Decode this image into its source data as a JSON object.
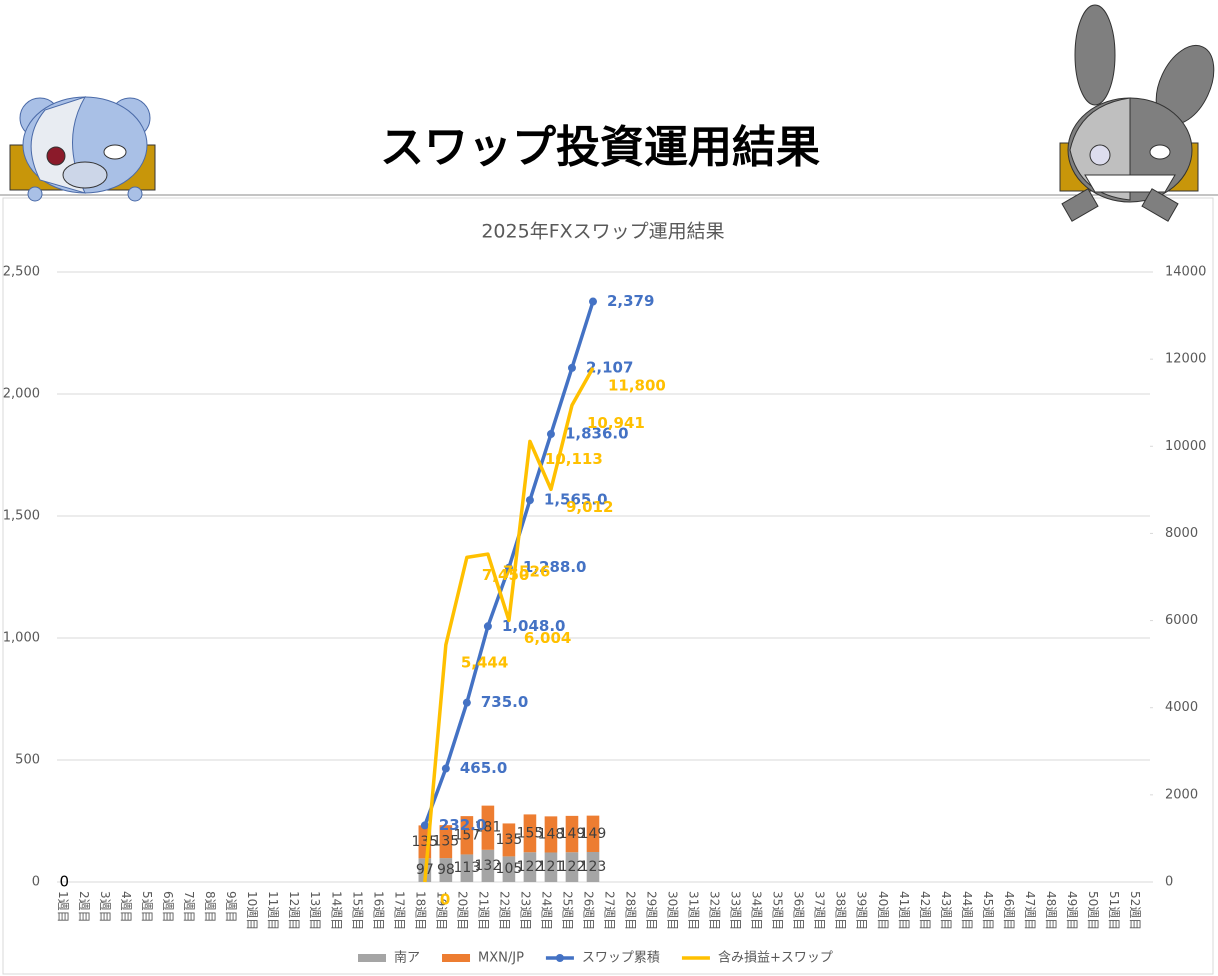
{
  "header": {
    "title": "スワップ投資運用結果"
  },
  "chart_data": {
    "type": "bar",
    "title": "2025年FXスワップ運用結果",
    "categories": [
      "1週目",
      "2週目",
      "3週目",
      "4週目",
      "5週目",
      "6週目",
      "7週目",
      "8週目",
      "9週目",
      "10週目",
      "11週目",
      "12週目",
      "13週目",
      "14週目",
      "15週目",
      "16週目",
      "17週目",
      "18週目",
      "19週目",
      "20週目",
      "21週目",
      "22週目",
      "23週目",
      "24週目",
      "25週目",
      "26週目",
      "27週目",
      "28週目",
      "29週目",
      "30週目",
      "31週目",
      "32週目",
      "33週目",
      "34週目",
      "35週目",
      "36週目",
      "37週目",
      "38週目",
      "39週目",
      "40週目",
      "41週目",
      "42週目",
      "43週目",
      "44週目",
      "45週目",
      "46週目",
      "47週目",
      "48週目",
      "49週目",
      "50週目",
      "51週目",
      "52週目"
    ],
    "series": [
      {
        "name": "南ア",
        "type": "bar",
        "color": "#a5a5a5",
        "values": [
          0,
          null,
          null,
          null,
          null,
          null,
          null,
          null,
          null,
          null,
          null,
          null,
          null,
          null,
          null,
          null,
          null,
          97,
          98,
          113,
          132,
          105,
          122,
          121,
          122,
          123,
          null,
          null,
          null,
          null,
          null,
          null,
          null,
          null,
          null,
          null,
          null,
          null,
          null,
          null,
          null,
          null,
          null,
          null,
          null,
          null,
          null,
          null,
          null,
          null,
          null,
          null
        ]
      },
      {
        "name": "MXN/JP",
        "type": "bar",
        "color": "#ed7d31",
        "values": [
          null,
          null,
          null,
          null,
          null,
          null,
          null,
          null,
          null,
          null,
          null,
          null,
          null,
          null,
          null,
          null,
          null,
          135,
          135,
          157,
          181,
          135,
          155,
          148,
          149,
          149,
          null,
          null,
          null,
          null,
          null,
          null,
          null,
          null,
          null,
          null,
          null,
          null,
          null,
          null,
          null,
          null,
          null,
          null,
          null,
          null,
          null,
          null,
          null,
          null,
          null,
          null
        ]
      },
      {
        "name": "スワップ累積",
        "type": "line",
        "marker": true,
        "color": "#4472c4",
        "values": [
          null,
          null,
          null,
          null,
          null,
          null,
          null,
          null,
          null,
          null,
          null,
          null,
          null,
          null,
          null,
          null,
          null,
          232,
          465,
          735,
          1048,
          1288,
          1565,
          1836,
          2107,
          2379,
          null,
          null,
          null,
          null,
          null,
          null,
          null,
          null,
          null,
          null,
          null,
          null,
          null,
          null,
          null,
          null,
          null,
          null,
          null,
          null,
          null,
          null,
          null,
          null,
          null,
          null
        ],
        "value_labels": [
          null,
          null,
          null,
          null,
          null,
          null,
          null,
          null,
          null,
          null,
          null,
          null,
          null,
          null,
          null,
          null,
          null,
          "232.0",
          "465.0",
          "735.0",
          "1,048.0",
          "1,288.0",
          "1,565.0",
          "1,836.0",
          "2,107",
          "2,379",
          null,
          null,
          null,
          null,
          null,
          null,
          null,
          null,
          null,
          null,
          null,
          null,
          null,
          null,
          null,
          null,
          null,
          null,
          null,
          null,
          null,
          null,
          null,
          null,
          null,
          null
        ]
      },
      {
        "name": "含み損益+スワップ",
        "type": "line",
        "marker": false,
        "axis": "y2",
        "color": "#ffc000",
        "values": [
          null,
          null,
          null,
          null,
          null,
          null,
          null,
          null,
          null,
          null,
          null,
          null,
          null,
          null,
          null,
          null,
          null,
          0,
          5444,
          7450,
          7526,
          6004,
          10113,
          9012,
          10941,
          11800,
          null,
          null,
          null,
          null,
          null,
          null,
          null,
          null,
          null,
          null,
          null,
          null,
          null,
          null,
          null,
          null,
          null,
          null,
          null,
          null,
          null,
          null,
          null,
          null,
          null,
          null
        ],
        "value_labels": [
          null,
          null,
          null,
          null,
          null,
          null,
          null,
          null,
          null,
          null,
          null,
          null,
          null,
          null,
          null,
          null,
          null,
          "0",
          "5,444",
          "7,450",
          "7,526",
          "6,004",
          "10,113",
          "9,012",
          "10,941",
          "11,800",
          null,
          null,
          null,
          null,
          null,
          null,
          null,
          null,
          null,
          null,
          null,
          null,
          null,
          null,
          null,
          null,
          null,
          null,
          null,
          null,
          null,
          null,
          null,
          null,
          null,
          null
        ]
      }
    ],
    "ylim": [
      0,
      2500
    ],
    "yticks": [
      0,
      500,
      {
        "value": 1000,
        "label": "1,000"
      },
      {
        "value": 1500,
        "label": "1,500"
      },
      {
        "value": 2000,
        "label": "2,000"
      },
      {
        "value": 2500,
        "label": "2,500"
      }
    ],
    "y2lim": [
      0,
      14000
    ],
    "y2ticks": [
      0,
      2000,
      4000,
      6000,
      8000,
      10000,
      12000,
      14000
    ],
    "grid": true,
    "legend": "bottom"
  }
}
